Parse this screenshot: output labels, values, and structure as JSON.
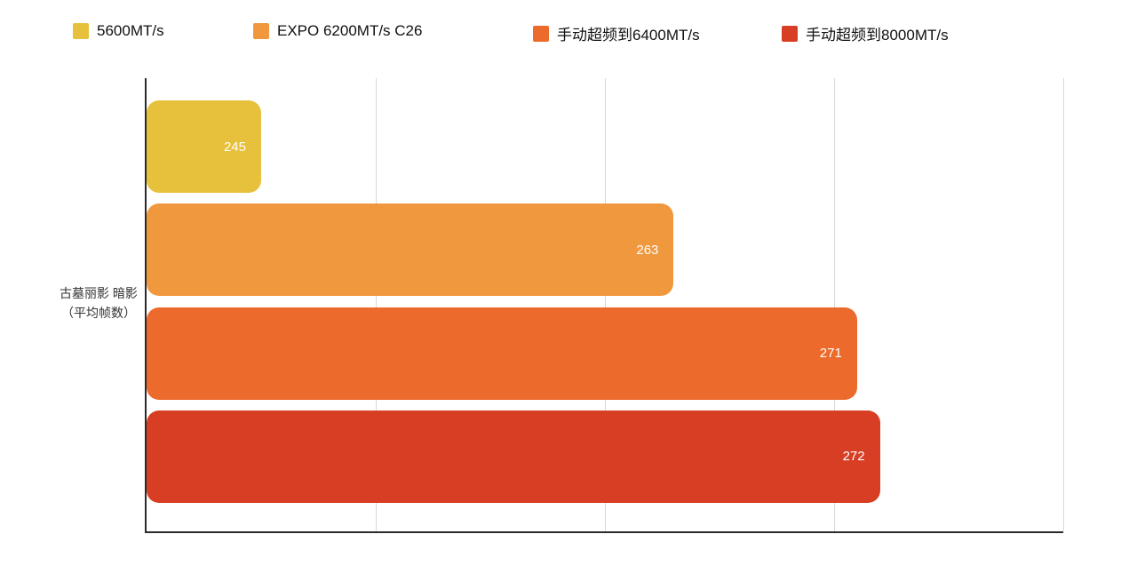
{
  "chart_data": {
    "type": "bar",
    "orientation": "horizontal",
    "title": "",
    "category": "古墓丽影 暗影（平均帧数）",
    "ylabel_lines": [
      "古墓丽影 暗影",
      "（平均帧数）"
    ],
    "series": [
      {
        "name": "5600MT/s",
        "value": 245,
        "color": "#e7c13c"
      },
      {
        "name": "EXPO 6200MT/s C26",
        "value": 263,
        "color": "#f0983e"
      },
      {
        "name": "手动超频到6400MT/s",
        "value": 271,
        "color": "#ec6a2b"
      },
      {
        "name": "手动超频到8000MT/s",
        "value": 272,
        "color": "#d83e23"
      }
    ],
    "xlim": [
      240,
      280
    ],
    "gridline_step": 10,
    "grid": true,
    "legend_position": "top",
    "value_label_color": "#ffffff",
    "value_labels_shown": true
  }
}
